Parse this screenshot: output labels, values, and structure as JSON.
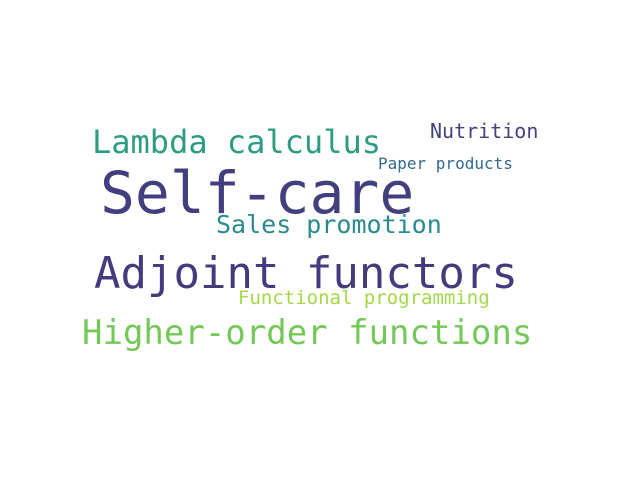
{
  "words": [
    {
      "text": "Self-care",
      "color": "#423f7f"
    },
    {
      "text": "Adjoint functors",
      "color": "#433b7c"
    },
    {
      "text": "Higher-order functions",
      "color": "#74c857"
    },
    {
      "text": "Lambda calculus",
      "color": "#2e9c82"
    },
    {
      "text": "Sales promotion",
      "color": "#2b8a8c"
    },
    {
      "text": "Nutrition",
      "color": "#454080"
    },
    {
      "text": "Functional programming",
      "color": "#a5d74a"
    },
    {
      "text": "Paper products",
      "color": "#35688d"
    }
  ]
}
